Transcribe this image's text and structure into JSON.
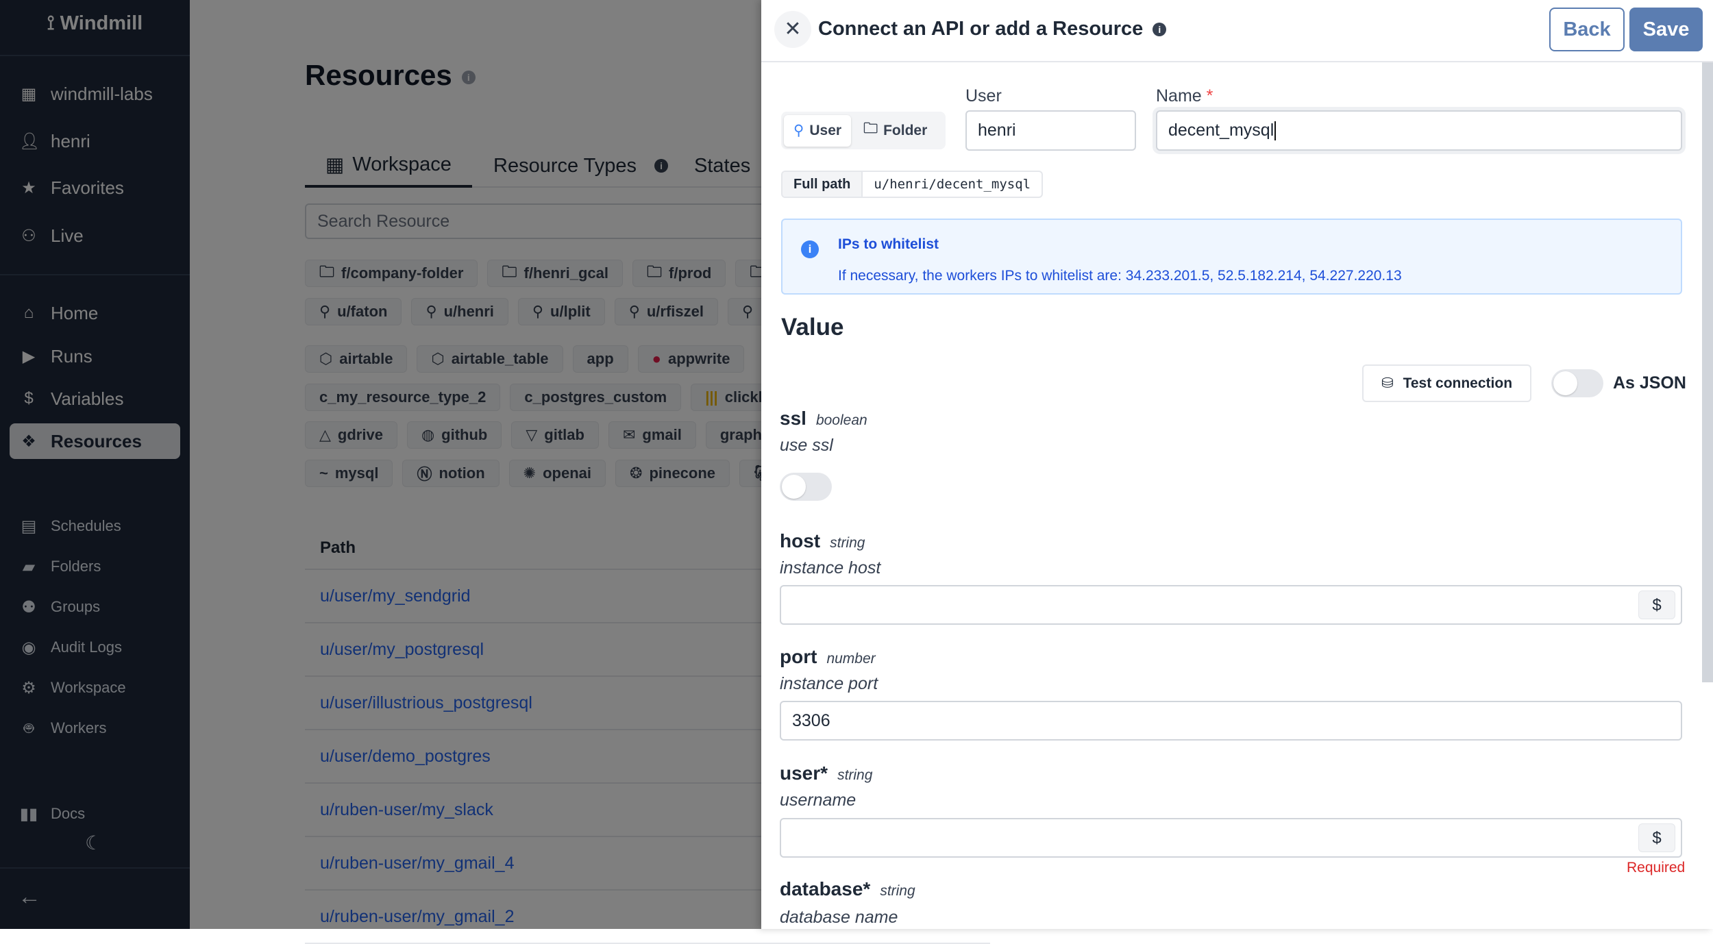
{
  "sidebar": {
    "logo": "Windmill",
    "top_items": [
      {
        "label": "windmill-labs",
        "icon": "building-icon"
      },
      {
        "label": "henri",
        "icon": "user-icon"
      },
      {
        "label": "Favorites",
        "icon": "star-icon"
      },
      {
        "label": "Live",
        "icon": "users-icon"
      }
    ],
    "main_items": [
      {
        "label": "Home",
        "icon": "home-icon"
      },
      {
        "label": "Runs",
        "icon": "play-icon"
      },
      {
        "label": "Variables",
        "icon": "dollar-icon"
      },
      {
        "label": "Resources",
        "icon": "boxes-icon",
        "active": true
      }
    ],
    "secondary_items": [
      {
        "label": "Schedules",
        "icon": "calendar-icon"
      },
      {
        "label": "Folders",
        "icon": "folder-icon"
      },
      {
        "label": "Groups",
        "icon": "group-icon"
      },
      {
        "label": "Audit Logs",
        "icon": "eye-icon"
      },
      {
        "label": "Workspace",
        "icon": "gear-icon"
      },
      {
        "label": "Workers",
        "icon": "robot-icon"
      }
    ],
    "docs": "Docs"
  },
  "main": {
    "title": "Resources",
    "tabs": [
      "Workspace",
      "Resource Types",
      "States"
    ],
    "search_placeholder": "Search Resource",
    "folder_chips": [
      "f/company-folder",
      "f/henri_gcal",
      "f/prod",
      ""
    ],
    "user_chips": [
      "u/faton",
      "u/henri",
      "u/lplit",
      "u/rfiszel",
      ""
    ],
    "type_chips_1": [
      "airtable",
      "airtable_table",
      "app",
      "appwrite"
    ],
    "type_chips_2": [
      "c_my_resource_type_2",
      "c_postgres_custom",
      "clickhouse"
    ],
    "type_chips_3": [
      "gdrive",
      "github",
      "gitlab",
      "gmail",
      "graphql"
    ],
    "type_chips_4": [
      "mysql",
      "notion",
      "openai",
      "pinecone",
      ""
    ],
    "table_header": "Path",
    "rows": [
      "u/user/my_sendgrid",
      "u/user/my_postgresql",
      "u/user/illustrious_postgresql",
      "u/user/demo_postgres",
      "u/ruben-user/my_slack",
      "u/ruben-user/my_gmail_4",
      "u/ruben-user/my_gmail_2"
    ]
  },
  "drawer": {
    "title": "Connect an API or add a Resource",
    "back": "Back",
    "save": "Save",
    "owner_toggle": {
      "user": "User",
      "folder": "Folder",
      "selected": "User"
    },
    "user_label": "User",
    "user_value": "henri",
    "name_label": "Name",
    "name_required": "*",
    "name_value": "decent_mysql",
    "full_path_label": "Full path",
    "full_path_value": "u/henri/decent_mysql",
    "alert_title": "IPs to whitelist",
    "alert_text": "If necessary, the workers IPs to whitelist are: 34.233.201.5, 52.5.182.214, 54.227.220.13",
    "value_heading": "Value",
    "test_connection": "Test connection",
    "as_json": "As JSON",
    "as_json_on": false,
    "fields": {
      "ssl": {
        "name": "ssl",
        "type": "boolean",
        "desc": "use ssl",
        "value": false
      },
      "host": {
        "name": "host",
        "type": "string",
        "desc": "instance host",
        "value": ""
      },
      "port": {
        "name": "port",
        "type": "number",
        "desc": "instance port",
        "value": "3306"
      },
      "user": {
        "name": "user",
        "type": "string",
        "desc": "username",
        "value": "",
        "error": "Required"
      },
      "database": {
        "name": "database",
        "type": "string",
        "desc": "database name"
      }
    },
    "secret_button": "$",
    "required_mark": "*"
  }
}
